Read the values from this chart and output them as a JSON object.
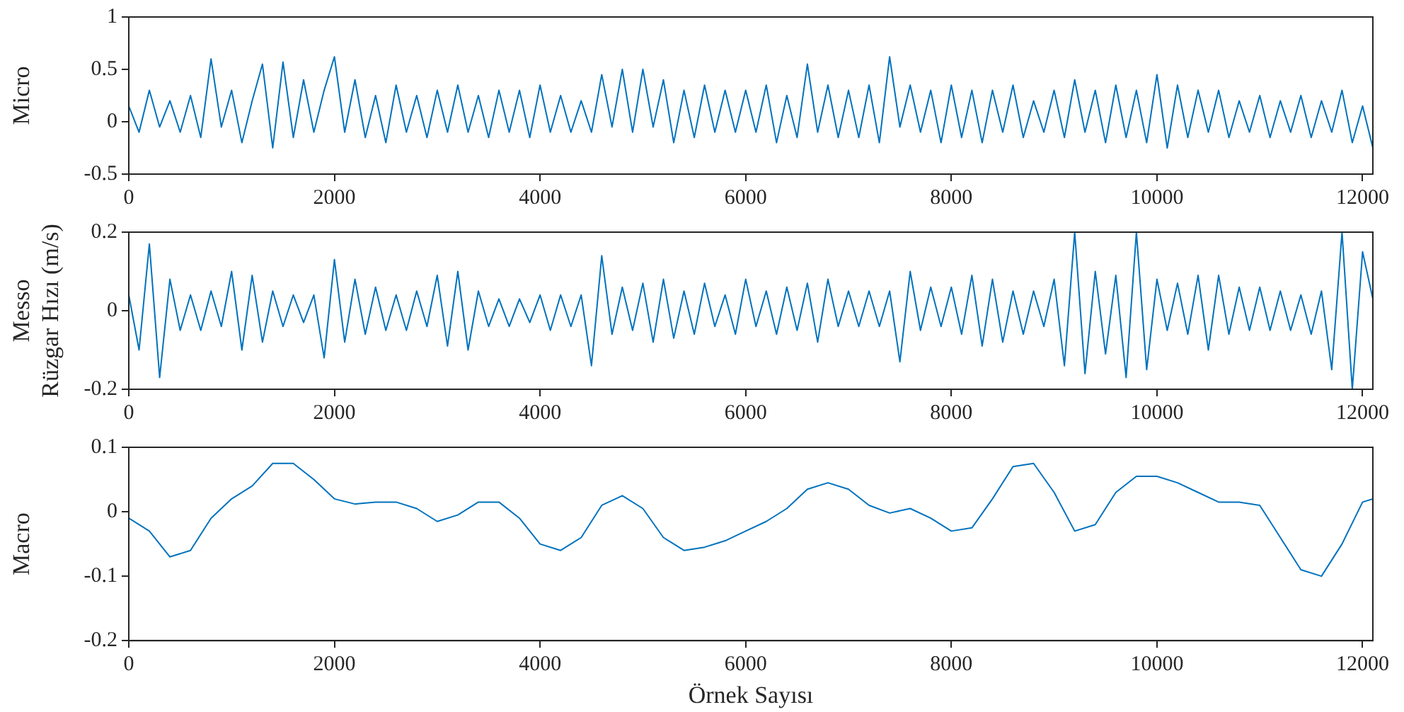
{
  "chart_data": [
    {
      "type": "line",
      "ylabel": "Micro",
      "color": "#0072bd",
      "xlim": [
        0,
        12100
      ],
      "xticks": [
        0,
        2000,
        4000,
        6000,
        8000,
        10000,
        12000
      ],
      "ylim": [
        -0.5,
        1
      ],
      "yticks": [
        -0.5,
        0,
        0.5,
        1
      ],
      "x": [
        0,
        100,
        200,
        300,
        400,
        500,
        600,
        700,
        800,
        900,
        1000,
        1100,
        1200,
        1300,
        1400,
        1500,
        1600,
        1700,
        1800,
        1900,
        2000,
        2100,
        2200,
        2300,
        2400,
        2500,
        2600,
        2700,
        2800,
        2900,
        3000,
        3100,
        3200,
        3300,
        3400,
        3500,
        3600,
        3700,
        3800,
        3900,
        4000,
        4100,
        4200,
        4300,
        4400,
        4500,
        4600,
        4700,
        4800,
        4900,
        5000,
        5100,
        5200,
        5300,
        5400,
        5500,
        5600,
        5700,
        5800,
        5900,
        6000,
        6100,
        6200,
        6300,
        6400,
        6500,
        6600,
        6700,
        6800,
        6900,
        7000,
        7100,
        7200,
        7300,
        7400,
        7500,
        7600,
        7700,
        7800,
        7900,
        8000,
        8100,
        8200,
        8300,
        8400,
        8500,
        8600,
        8700,
        8800,
        8900,
        9000,
        9100,
        9200,
        9300,
        9400,
        9500,
        9600,
        9700,
        9800,
        9900,
        10000,
        10100,
        10200,
        10300,
        10400,
        10500,
        10600,
        10700,
        10800,
        10900,
        11000,
        11100,
        11200,
        11300,
        11400,
        11500,
        11600,
        11700,
        11800,
        11900,
        12000,
        12100
      ],
      "values": [
        0.15,
        -0.1,
        0.3,
        -0.05,
        0.2,
        -0.1,
        0.25,
        -0.15,
        0.6,
        -0.05,
        0.3,
        -0.2,
        0.2,
        0.55,
        -0.25,
        0.57,
        -0.15,
        0.4,
        -0.1,
        0.3,
        0.62,
        -0.1,
        0.4,
        -0.15,
        0.25,
        -0.2,
        0.35,
        -0.1,
        0.25,
        -0.15,
        0.3,
        -0.1,
        0.35,
        -0.1,
        0.25,
        -0.15,
        0.3,
        -0.1,
        0.3,
        -0.15,
        0.35,
        -0.1,
        0.25,
        -0.1,
        0.2,
        -0.1,
        0.45,
        -0.05,
        0.5,
        -0.1,
        0.5,
        -0.05,
        0.4,
        -0.2,
        0.3,
        -0.15,
        0.35,
        -0.1,
        0.3,
        -0.1,
        0.3,
        -0.1,
        0.35,
        -0.2,
        0.25,
        -0.15,
        0.55,
        -0.1,
        0.35,
        -0.15,
        0.3,
        -0.15,
        0.35,
        -0.2,
        0.62,
        -0.05,
        0.35,
        -0.1,
        0.3,
        -0.2,
        0.35,
        -0.15,
        0.3,
        -0.2,
        0.3,
        -0.1,
        0.35,
        -0.15,
        0.2,
        -0.1,
        0.3,
        -0.15,
        0.4,
        -0.1,
        0.3,
        -0.2,
        0.35,
        -0.15,
        0.3,
        -0.2,
        0.45,
        -0.25,
        0.35,
        -0.15,
        0.3,
        -0.1,
        0.3,
        -0.15,
        0.2,
        -0.1,
        0.25,
        -0.15,
        0.2,
        -0.1,
        0.25,
        -0.15,
        0.2,
        -0.1,
        0.3,
        -0.2,
        0.15,
        -0.25
      ]
    },
    {
      "type": "line",
      "ylabel": "Messo\nRüzgar Hızı (m/s)",
      "color": "#0072bd",
      "xlim": [
        0,
        12100
      ],
      "xticks": [
        0,
        2000,
        4000,
        6000,
        8000,
        10000,
        12000
      ],
      "ylim": [
        -0.2,
        0.2
      ],
      "yticks": [
        -0.2,
        0,
        0.2
      ],
      "x": [
        0,
        100,
        200,
        300,
        400,
        500,
        600,
        700,
        800,
        900,
        1000,
        1100,
        1200,
        1300,
        1400,
        1500,
        1600,
        1700,
        1800,
        1900,
        2000,
        2100,
        2200,
        2300,
        2400,
        2500,
        2600,
        2700,
        2800,
        2900,
        3000,
        3100,
        3200,
        3300,
        3400,
        3500,
        3600,
        3700,
        3800,
        3900,
        4000,
        4100,
        4200,
        4300,
        4400,
        4500,
        4600,
        4700,
        4800,
        4900,
        5000,
        5100,
        5200,
        5300,
        5400,
        5500,
        5600,
        5700,
        5800,
        5900,
        6000,
        6100,
        6200,
        6300,
        6400,
        6500,
        6600,
        6700,
        6800,
        6900,
        7000,
        7100,
        7200,
        7300,
        7400,
        7500,
        7600,
        7700,
        7800,
        7900,
        8000,
        8100,
        8200,
        8300,
        8400,
        8500,
        8600,
        8700,
        8800,
        8900,
        9000,
        9100,
        9200,
        9300,
        9400,
        9500,
        9600,
        9700,
        9800,
        9900,
        10000,
        10100,
        10200,
        10300,
        10400,
        10500,
        10600,
        10700,
        10800,
        10900,
        11000,
        11100,
        11200,
        11300,
        11400,
        11500,
        11600,
        11700,
        11800,
        11900,
        12000,
        12100
      ],
      "values": [
        0.04,
        -0.1,
        0.17,
        -0.17,
        0.08,
        -0.05,
        0.04,
        -0.05,
        0.05,
        -0.04,
        0.1,
        -0.1,
        0.09,
        -0.08,
        0.05,
        -0.04,
        0.04,
        -0.03,
        0.04,
        -0.12,
        0.13,
        -0.08,
        0.08,
        -0.06,
        0.06,
        -0.05,
        0.04,
        -0.05,
        0.05,
        -0.04,
        0.09,
        -0.09,
        0.1,
        -0.1,
        0.05,
        -0.04,
        0.03,
        -0.04,
        0.03,
        -0.03,
        0.04,
        -0.05,
        0.04,
        -0.04,
        0.04,
        -0.14,
        0.14,
        -0.06,
        0.06,
        -0.05,
        0.07,
        -0.08,
        0.08,
        -0.07,
        0.05,
        -0.06,
        0.07,
        -0.04,
        0.04,
        -0.06,
        0.08,
        -0.04,
        0.05,
        -0.06,
        0.06,
        -0.05,
        0.07,
        -0.08,
        0.08,
        -0.04,
        0.05,
        -0.04,
        0.05,
        -0.04,
        0.05,
        -0.13,
        0.1,
        -0.05,
        0.06,
        -0.04,
        0.06,
        -0.06,
        0.09,
        -0.09,
        0.08,
        -0.08,
        0.05,
        -0.06,
        0.05,
        -0.04,
        0.08,
        -0.14,
        0.2,
        -0.16,
        0.1,
        -0.11,
        0.09,
        -0.17,
        0.2,
        -0.15,
        0.08,
        -0.05,
        0.07,
        -0.06,
        0.09,
        -0.1,
        0.09,
        -0.06,
        0.06,
        -0.05,
        0.06,
        -0.05,
        0.05,
        -0.05,
        0.04,
        -0.06,
        0.05,
        -0.15,
        0.2,
        -0.2,
        0.15,
        0.03
      ]
    },
    {
      "type": "line",
      "ylabel": "Macro",
      "xlabel": "Örnek Sayısı",
      "color": "#0072bd",
      "xlim": [
        0,
        12100
      ],
      "xticks": [
        0,
        2000,
        4000,
        6000,
        8000,
        10000,
        12000
      ],
      "ylim": [
        -0.2,
        0.1
      ],
      "yticks": [
        -0.2,
        -0.1,
        0,
        0.1
      ],
      "x": [
        0,
        200,
        400,
        600,
        800,
        1000,
        1200,
        1400,
        1600,
        1800,
        2000,
        2200,
        2400,
        2600,
        2800,
        3000,
        3200,
        3400,
        3600,
        3800,
        4000,
        4200,
        4400,
        4600,
        4800,
        5000,
        5200,
        5400,
        5600,
        5800,
        6000,
        6200,
        6400,
        6600,
        6800,
        7000,
        7200,
        7400,
        7600,
        7800,
        8000,
        8200,
        8400,
        8600,
        8800,
        9000,
        9200,
        9400,
        9600,
        9800,
        10000,
        10200,
        10400,
        10600,
        10800,
        11000,
        11200,
        11400,
        11600,
        11800,
        12000,
        12100
      ],
      "values": [
        -0.01,
        -0.03,
        -0.07,
        -0.06,
        -0.01,
        0.02,
        0.04,
        0.075,
        0.075,
        0.05,
        0.02,
        0.012,
        0.015,
        0.015,
        0.005,
        -0.015,
        -0.005,
        0.015,
        0.015,
        -0.01,
        -0.05,
        -0.06,
        -0.04,
        0.01,
        0.025,
        0.005,
        -0.04,
        -0.06,
        -0.055,
        -0.045,
        -0.03,
        -0.015,
        0.005,
        0.035,
        0.045,
        0.035,
        0.01,
        -0.002,
        0.005,
        -0.01,
        -0.03,
        -0.025,
        0.02,
        0.07,
        0.075,
        0.03,
        -0.03,
        -0.02,
        0.03,
        0.055,
        0.055,
        0.045,
        0.03,
        0.015,
        0.015,
        0.01,
        -0.04,
        -0.09,
        -0.1,
        -0.05,
        0.015,
        0.02
      ]
    }
  ]
}
